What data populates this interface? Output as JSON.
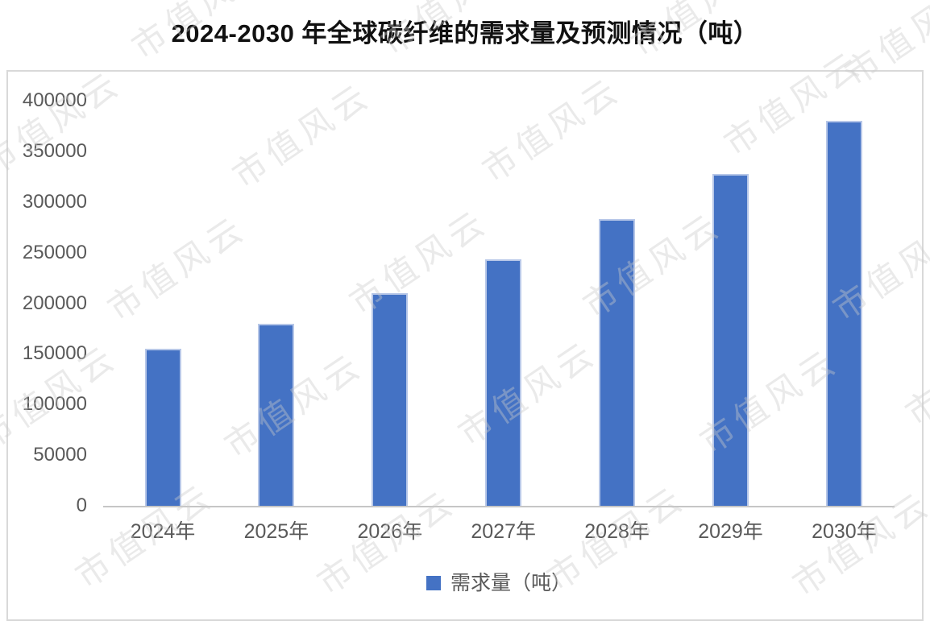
{
  "page": {
    "title": "2024-2030 年全球碳纤维的需求量及预测情况（吨）",
    "watermark_text": "市值风云"
  },
  "legend": {
    "label": "需求量（吨）"
  },
  "chart_data": {
    "type": "bar",
    "title": "2024-2030 年全球碳纤维的需求量及预测情况（吨）",
    "categories": [
      "2024年",
      "2025年",
      "2026年",
      "2027年",
      "2028年",
      "2029年",
      "2030年"
    ],
    "series": [
      {
        "name": "需求量（吨）",
        "values": [
          155000,
          180000,
          210000,
          243000,
          283000,
          328000,
          380000
        ]
      }
    ],
    "xlabel": "",
    "ylabel": "",
    "ylim": [
      0,
      400000
    ],
    "ytick_interval": 50000,
    "yticks": [
      0,
      50000,
      100000,
      150000,
      200000,
      250000,
      300000,
      350000,
      400000
    ],
    "grid": false,
    "legend_position": "bottom"
  },
  "colors": {
    "bar": "#4472C4",
    "bar_edge": "#b7c7e8",
    "axis_line": "#c6c6c6",
    "tick_label": "#595959",
    "frame_border": "#d9d9d9",
    "title_text": "#111111",
    "watermark": "rgba(203,203,203,0.40)"
  }
}
